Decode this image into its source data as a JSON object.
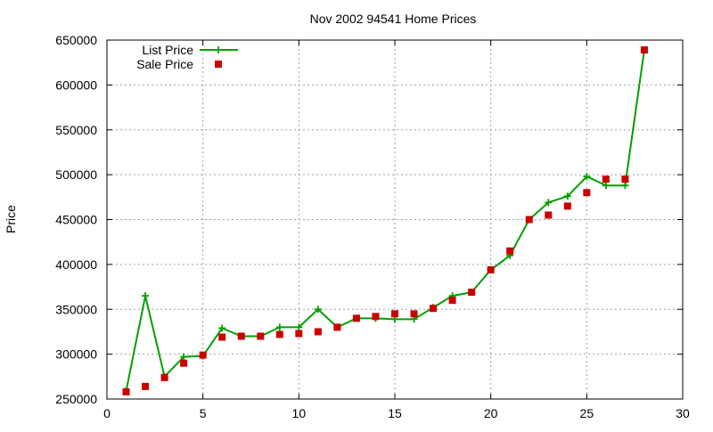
{
  "chart_data": {
    "type": "line",
    "title": "Nov 2002 94541 Home Prices",
    "xlabel": "",
    "ylabel": "Price",
    "xlim": [
      0,
      30
    ],
    "ylim": [
      250000,
      650000
    ],
    "xticks": [
      0,
      5,
      10,
      15,
      20,
      25,
      30
    ],
    "yticks": [
      250000,
      300000,
      350000,
      400000,
      450000,
      500000,
      550000,
      600000,
      650000
    ],
    "grid": true,
    "legend_position": "top-left",
    "series": [
      {
        "name": "List Price",
        "style": "line-with-plus-markers",
        "color": "#00a000",
        "x": [
          1,
          2,
          3,
          4,
          5,
          6,
          7,
          8,
          9,
          10,
          11,
          12,
          13,
          14,
          15,
          16,
          17,
          18,
          19,
          20,
          21,
          22,
          23,
          24,
          25,
          26,
          27,
          28
        ],
        "y": [
          259000,
          365000,
          275000,
          297000,
          298000,
          329000,
          320000,
          320000,
          330000,
          330000,
          350000,
          330000,
          340000,
          340000,
          339000,
          339000,
          352000,
          365000,
          369000,
          394000,
          410000,
          450000,
          469000,
          476000,
          498000,
          488000,
          488000,
          639000
        ]
      },
      {
        "name": "Sale Price",
        "style": "square-markers",
        "color": "#cc0000",
        "x": [
          1,
          2,
          3,
          4,
          5,
          6,
          7,
          8,
          9,
          10,
          11,
          12,
          13,
          14,
          15,
          16,
          17,
          18,
          19,
          20,
          21,
          22,
          23,
          24,
          25,
          26,
          27,
          28
        ],
        "y": [
          258000,
          264000,
          274000,
          290000,
          299000,
          319000,
          320000,
          320000,
          322000,
          323000,
          325000,
          330000,
          340000,
          342000,
          345000,
          345000,
          351000,
          360000,
          369000,
          394000,
          415000,
          450000,
          455000,
          465000,
          480000,
          495000,
          495000,
          639000
        ]
      }
    ]
  }
}
